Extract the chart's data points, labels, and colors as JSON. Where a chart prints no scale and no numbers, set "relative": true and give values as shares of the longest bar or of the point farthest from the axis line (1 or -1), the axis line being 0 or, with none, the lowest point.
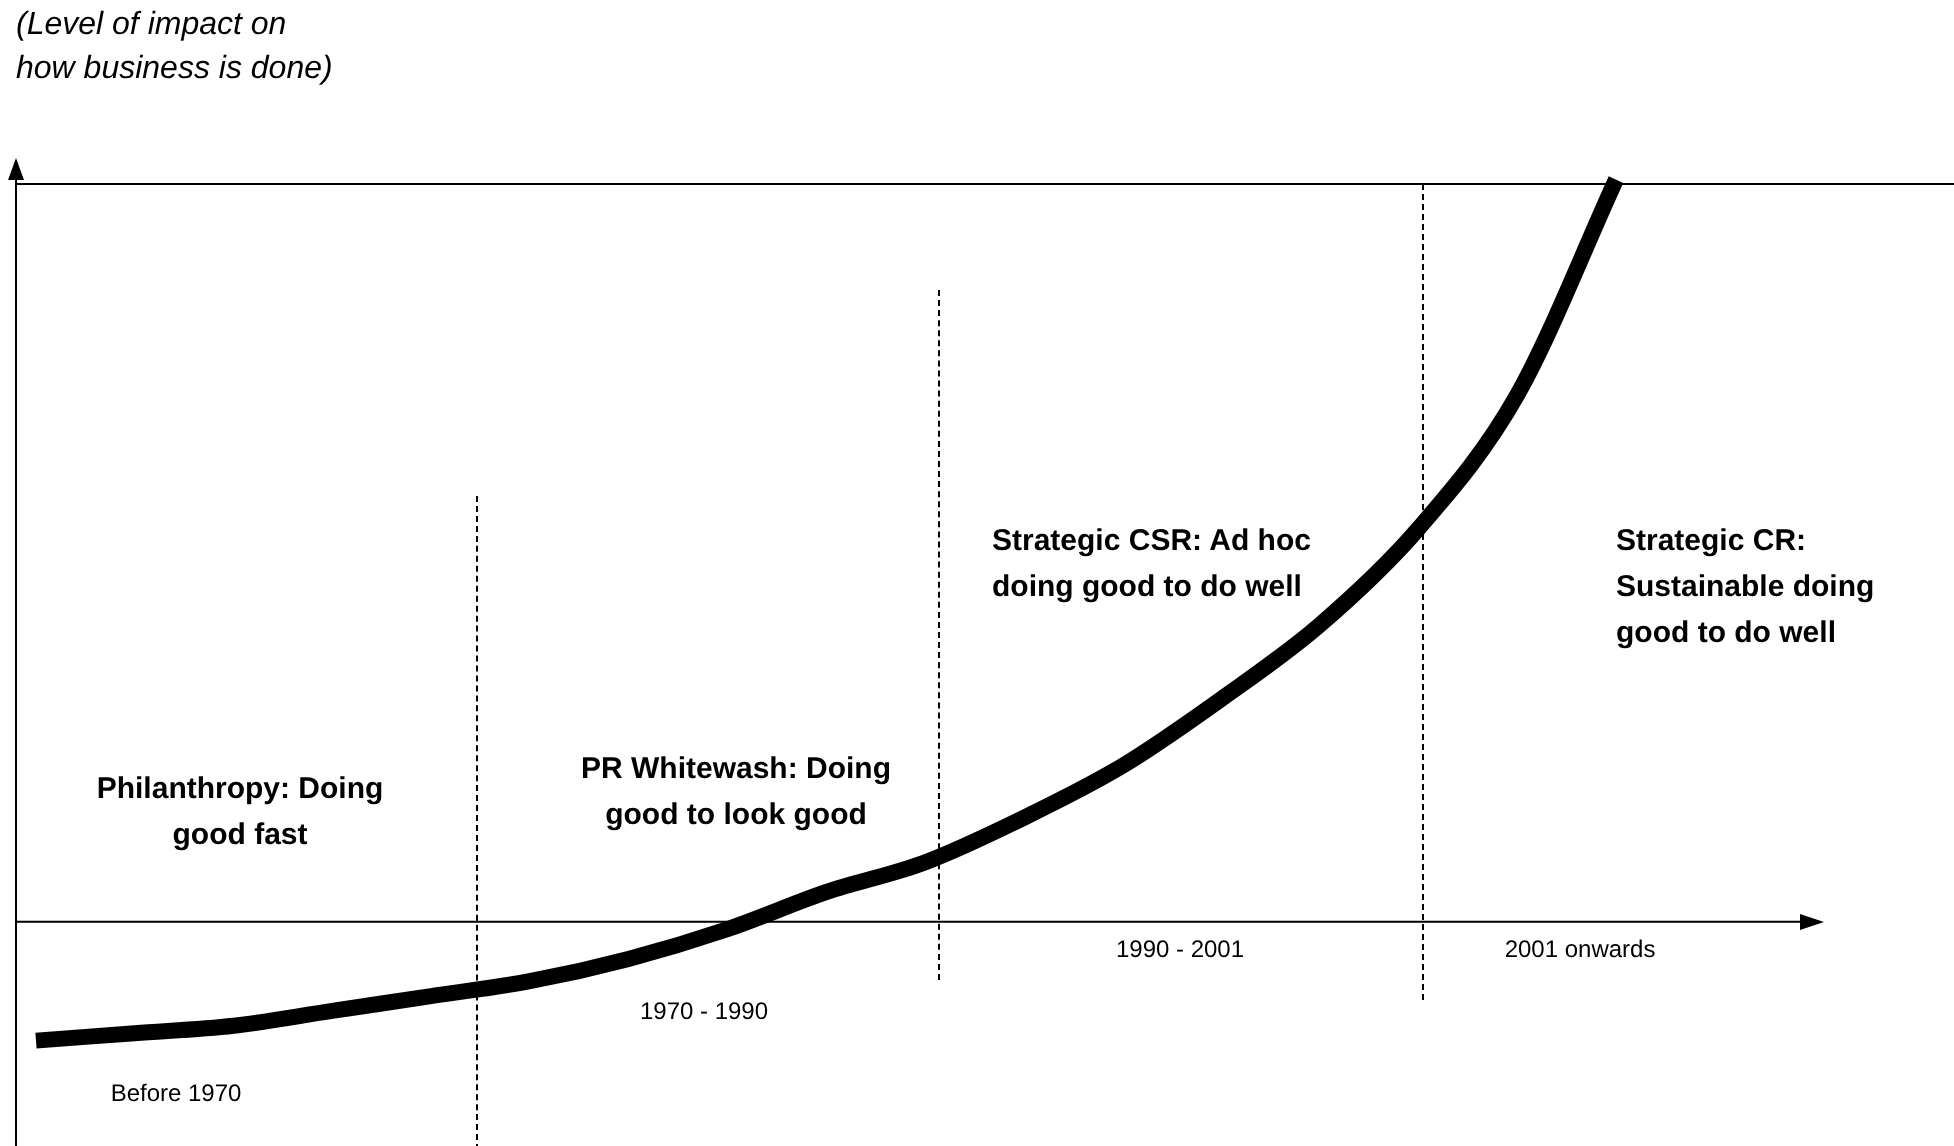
{
  "chart_data": {
    "type": "line",
    "relative": true,
    "ylabel": "(Level of impact on how business is done)",
    "marker": "none",
    "color": "#000000",
    "categories": [
      null,
      null,
      null,
      null,
      null,
      null,
      null,
      null,
      null,
      null,
      null,
      null,
      null,
      null,
      null,
      null,
      null
    ],
    "values": [
      -0.16,
      -0.15,
      -0.14,
      -0.12,
      -0.1,
      -0.08,
      -0.05,
      -0.01,
      0.04,
      0.08,
      0.14,
      0.21,
      0.3,
      0.4,
      0.53,
      0.71,
      1
    ],
    "annotations": [
      "Philanthropy: Doing good fast",
      "PR Whitewash: Doing good to look good",
      "Strategic CSR: Ad hoc doing good to do well",
      "Strategic CR: Sustainable doing good to do well",
      "Before 1970",
      "1970 - 1990",
      "1990 - 2001",
      "2001 onwards"
    ]
  }
}
